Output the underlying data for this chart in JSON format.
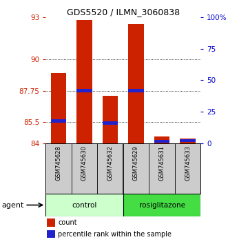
{
  "title": "GDS5520 / ILMN_3060838",
  "samples": [
    "GSM745628",
    "GSM745630",
    "GSM745632",
    "GSM745629",
    "GSM745631",
    "GSM745633"
  ],
  "groups": [
    "control",
    "control",
    "control",
    "rosiglitazone",
    "rosiglitazone",
    "rosiglitazone"
  ],
  "group_labels": [
    "control",
    "rosiglitazone"
  ],
  "red_values": [
    89.0,
    92.8,
    87.4,
    92.5,
    84.5,
    84.35
  ],
  "blue_values": [
    85.6,
    87.75,
    85.45,
    87.75,
    84.15,
    84.2
  ],
  "ymin": 84,
  "ymax": 93,
  "yticks_left": [
    84,
    85.5,
    87.75,
    90,
    93
  ],
  "yticks_right_vals": [
    0,
    25,
    50,
    75,
    100
  ],
  "yticks_right_labels": [
    "0",
    "25",
    "50",
    "75",
    "100%"
  ],
  "red_color": "#cc2200",
  "blue_color": "#2222cc",
  "bar_width": 0.6,
  "legend_labels": [
    "count",
    "percentile rank within the sample"
  ],
  "agent_label": "agent",
  "left_color": "#cc2200",
  "right_color": "#0000cc",
  "ctrl_color": "#ccffcc",
  "rosi_color": "#44dd44",
  "sample_bg": "#cccccc",
  "grid_vals": [
    85.5,
    87.75,
    90
  ]
}
